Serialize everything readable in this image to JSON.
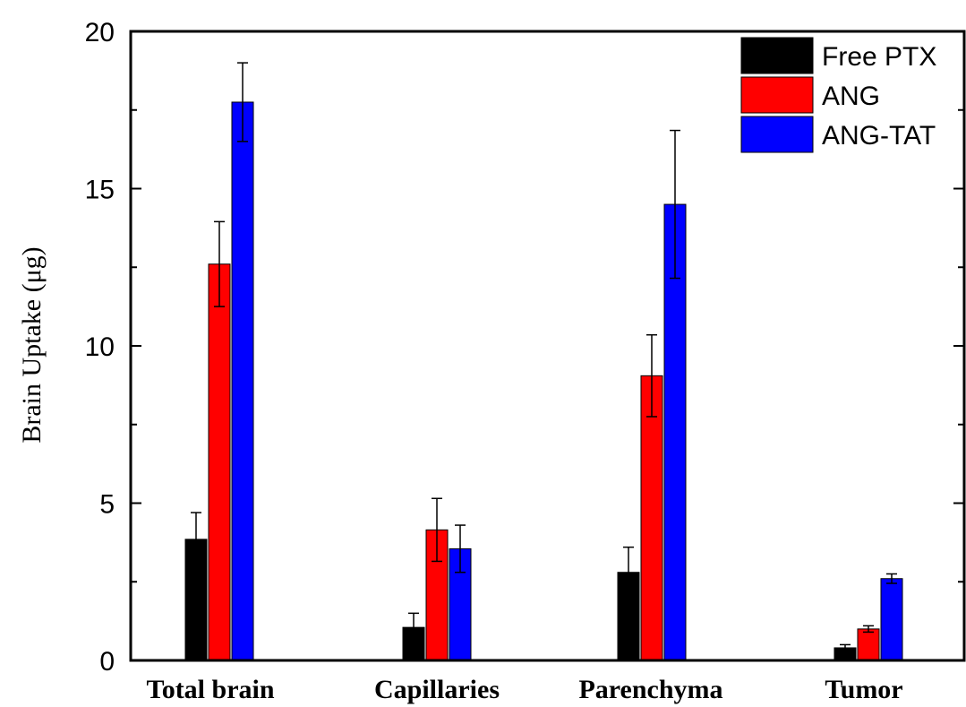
{
  "chart_data": {
    "type": "bar",
    "title": "",
    "xlabel": "",
    "ylabel": "Brain Uptake (μg)",
    "ylim": [
      0,
      20
    ],
    "yticks": [
      0,
      5,
      10,
      15,
      20
    ],
    "categories": [
      "Total brain",
      "Capillaries",
      "Parenchyma",
      "Tumor"
    ],
    "legend_position": "top-right",
    "grid": false,
    "series": [
      {
        "name": "Free PTX",
        "color": "#000000",
        "values": [
          3.85,
          1.05,
          2.8,
          0.4
        ],
        "errors": [
          0.85,
          0.45,
          0.8,
          0.1
        ]
      },
      {
        "name": "ANG",
        "color": "#ff0000",
        "values": [
          12.6,
          4.15,
          9.05,
          1.0
        ],
        "errors": [
          1.35,
          1.0,
          1.3,
          0.1
        ]
      },
      {
        "name": "ANG-TAT",
        "color": "#0000ff",
        "values": [
          17.75,
          3.55,
          14.5,
          2.6
        ],
        "errors": [
          1.25,
          0.75,
          2.35,
          0.15
        ]
      }
    ]
  }
}
